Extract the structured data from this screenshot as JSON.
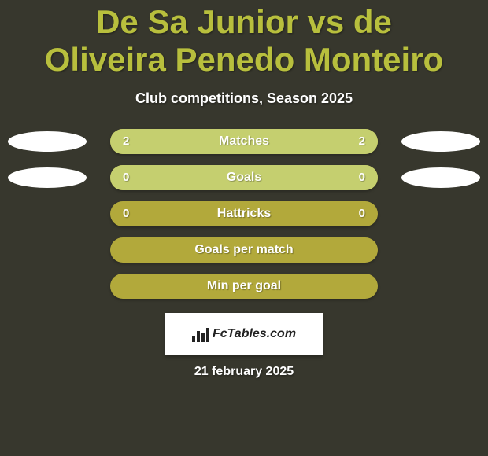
{
  "colors": {
    "background": "#37372d",
    "title": "#b8bf3d",
    "subtitle": "#ffffff",
    "bar_base": "#b2a93b",
    "bar_fill": "#c5cf6f",
    "bar_text": "#ffffff",
    "ellipse": "#ffffff",
    "logo_bg": "#ffffff",
    "date": "#ffffff"
  },
  "typography": {
    "title_fontsize": 42,
    "subtitle_fontsize": 18,
    "bar_label_fontsize": 16,
    "bar_value_fontsize": 15,
    "date_fontsize": 16
  },
  "title": "De Sa Junior vs de Oliveira Penedo Monteiro",
  "subtitle": "Club competitions, Season 2025",
  "rows": [
    {
      "label": "Matches",
      "left": "2",
      "right": "2",
      "show_values": true,
      "show_ellipses": true,
      "fill_left_pct": 50,
      "fill_right_pct": 50
    },
    {
      "label": "Goals",
      "left": "0",
      "right": "0",
      "show_values": true,
      "show_ellipses": true,
      "fill_left_pct": 50,
      "fill_right_pct": 50
    },
    {
      "label": "Hattricks",
      "left": "0",
      "right": "0",
      "show_values": true,
      "show_ellipses": false,
      "fill_left_pct": 0,
      "fill_right_pct": 0
    },
    {
      "label": "Goals per match",
      "left": "",
      "right": "",
      "show_values": false,
      "show_ellipses": false,
      "fill_left_pct": 0,
      "fill_right_pct": 0
    },
    {
      "label": "Min per goal",
      "left": "",
      "right": "",
      "show_values": false,
      "show_ellipses": false,
      "fill_left_pct": 0,
      "fill_right_pct": 0
    }
  ],
  "logo_text": "FcTables.com",
  "date": "21 february 2025"
}
